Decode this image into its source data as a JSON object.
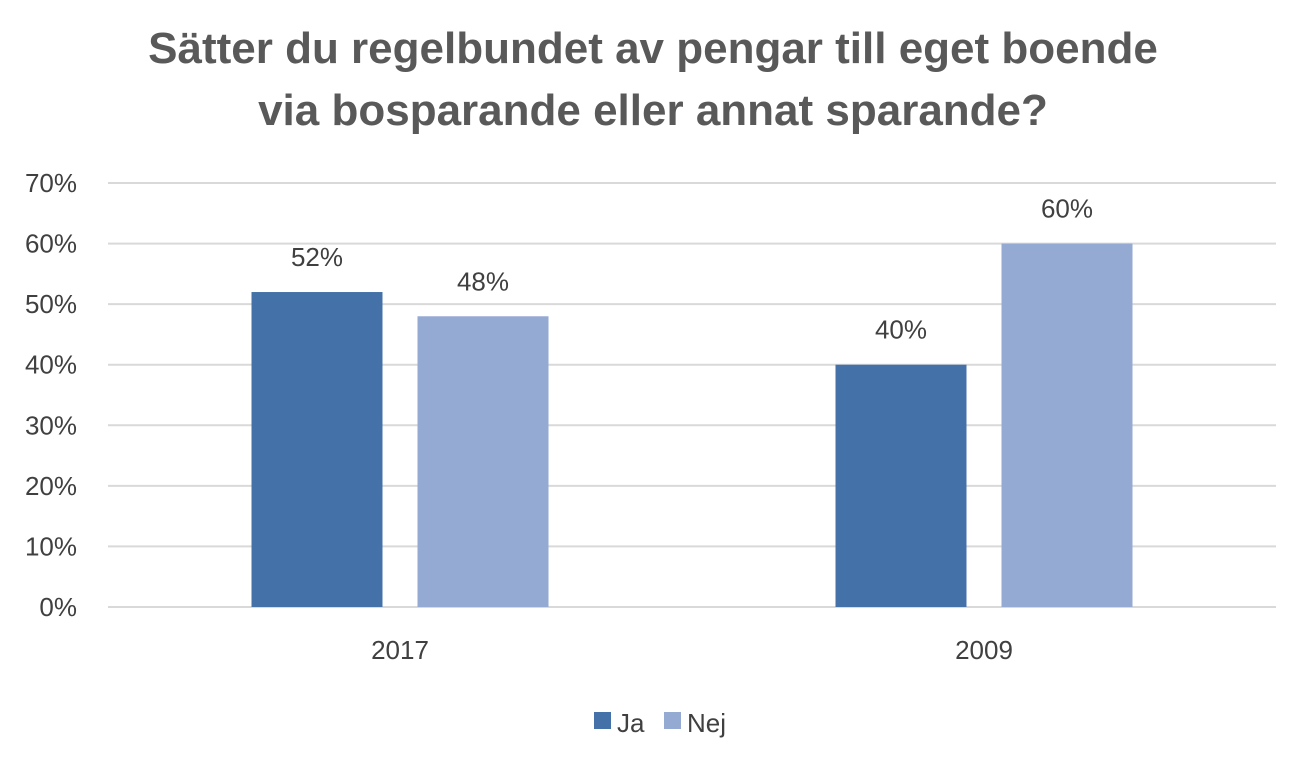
{
  "chart_data": {
    "type": "bar",
    "title_lines": [
      "Sätter du regelbundet av pengar till eget boende",
      "via bosparande eller annat sparande?"
    ],
    "categories": [
      "2017",
      "2009"
    ],
    "series": [
      {
        "name": "Ja",
        "values": [
          52,
          40
        ],
        "color": "#4472a8"
      },
      {
        "name": "Nej",
        "values": [
          48,
          60
        ],
        "color": "#95aad2"
      }
    ],
    "data_labels": [
      [
        "52%",
        "40%"
      ],
      [
        "48%",
        "60%"
      ]
    ],
    "ylim": [
      0,
      70
    ],
    "yticks": [
      0,
      10,
      20,
      30,
      40,
      50,
      60,
      70
    ],
    "ytick_labels": [
      "0%",
      "10%",
      "20%",
      "30%",
      "40%",
      "50%",
      "60%",
      "70%"
    ],
    "grid": true,
    "legend_position": "bottom",
    "xlabel": "",
    "ylabel": ""
  }
}
